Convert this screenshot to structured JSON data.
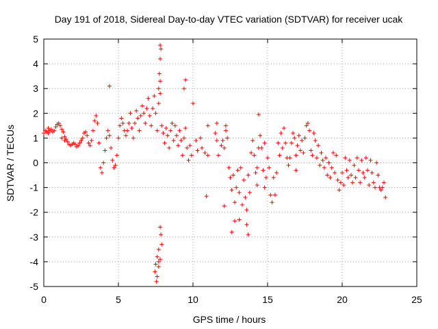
{
  "chart_data": {
    "type": "scatter",
    "title": "Day 191 of 2018, Sidereal Day-to-day VTEC variation (SDTVAR) for receiver ucak",
    "xlabel": "GPS time / hours",
    "ylabel": "SDTVAR / TECUs",
    "xlim": [
      0,
      25
    ],
    "ylim": [
      -5,
      5
    ],
    "xticks": [
      "0",
      "5",
      "10",
      "15",
      "20",
      "25"
    ],
    "yticks": [
      "-5",
      "-4",
      "-3",
      "-2",
      "-1",
      "0",
      "1",
      "2",
      "3",
      "4",
      "5"
    ],
    "grid": true,
    "marker": "+",
    "color": "#ff0000",
    "series": [
      {
        "name": "SDTVAR",
        "points": [
          [
            0.0,
            1.2
          ],
          [
            0.1,
            1.3
          ],
          [
            0.2,
            1.25
          ],
          [
            0.3,
            1.2
          ],
          [
            0.4,
            1.3
          ],
          [
            0.5,
            1.35
          ],
          [
            0.6,
            1.25
          ],
          [
            0.7,
            1.3
          ],
          [
            0.8,
            1.45
          ],
          [
            0.9,
            1.55
          ],
          [
            1.0,
            1.6
          ],
          [
            1.1,
            1.5
          ],
          [
            1.2,
            1.35
          ],
          [
            1.3,
            1.25
          ],
          [
            1.4,
            1.05
          ],
          [
            1.5,
            0.95
          ],
          [
            1.6,
            0.85
          ],
          [
            1.7,
            0.75
          ],
          [
            1.8,
            0.7
          ],
          [
            1.9,
            0.75
          ],
          [
            2.0,
            0.8
          ],
          [
            2.1,
            0.75
          ],
          [
            2.2,
            0.65
          ],
          [
            2.3,
            0.7
          ],
          [
            2.4,
            0.8
          ],
          [
            2.5,
            0.9
          ],
          [
            2.6,
            1.0
          ],
          [
            2.7,
            1.2
          ],
          [
            2.8,
            1.25
          ],
          [
            2.9,
            1.1
          ],
          [
            3.0,
            0.8
          ],
          [
            3.1,
            0.7
          ],
          [
            3.2,
            0.9
          ],
          [
            3.3,
            1.3
          ],
          [
            3.4,
            1.7
          ],
          [
            3.5,
            1.9
          ],
          [
            3.6,
            1.6
          ],
          [
            3.7,
            0.8
          ],
          [
            3.8,
            -0.2
          ],
          [
            3.9,
            -0.4
          ],
          [
            4.0,
            0.0
          ],
          [
            4.1,
            0.5
          ],
          [
            4.2,
            1.0
          ],
          [
            4.3,
            1.3
          ],
          [
            4.4,
            1.1
          ],
          [
            4.5,
            0.6
          ],
          [
            4.6,
            0.1
          ],
          [
            4.7,
            -0.2
          ],
          [
            4.8,
            -0.1
          ],
          [
            4.9,
            0.3
          ],
          [
            5.0,
            1.0
          ],
          [
            5.1,
            1.5
          ],
          [
            5.2,
            1.8
          ],
          [
            5.3,
            1.6
          ],
          [
            5.4,
            1.3
          ],
          [
            5.5,
            1.1
          ],
          [
            5.6,
            1.3
          ],
          [
            5.7,
            1.6
          ],
          [
            5.8,
            2.0
          ],
          [
            5.9,
            1.4
          ],
          [
            6.0,
            1.0
          ],
          [
            6.1,
            1.6
          ],
          [
            6.2,
            2.1
          ],
          [
            6.3,
            1.8
          ],
          [
            6.4,
            1.3
          ],
          [
            6.5,
            1.9
          ],
          [
            6.6,
            2.3
          ],
          [
            6.7,
            2.0
          ],
          [
            6.8,
            1.6
          ],
          [
            6.9,
            2.2
          ],
          [
            7.0,
            2.6
          ],
          [
            7.1,
            1.9
          ],
          [
            7.2,
            1.5
          ],
          [
            7.3,
            2.2
          ],
          [
            7.4,
            2.7
          ],
          [
            7.5,
            2.0
          ],
          [
            7.6,
            1.3
          ],
          [
            7.7,
            2.4
          ],
          [
            7.8,
            2.8
          ],
          [
            7.9,
            1.5
          ],
          [
            8.0,
            1.2
          ],
          [
            8.1,
            0.8
          ],
          [
            8.2,
            1.4
          ],
          [
            8.3,
            1.1
          ],
          [
            8.4,
            0.6
          ],
          [
            8.5,
            1.3
          ],
          [
            8.6,
            1.6
          ],
          [
            8.7,
            0.9
          ],
          [
            8.8,
            1.5
          ],
          [
            8.9,
            1.1
          ],
          [
            9.0,
            0.7
          ],
          [
            9.1,
            1.3
          ],
          [
            9.2,
            0.9
          ],
          [
            9.3,
            0.3
          ],
          [
            9.4,
            1.0
          ],
          [
            9.5,
            1.4
          ],
          [
            9.6,
            0.6
          ],
          [
            9.7,
            0.1
          ],
          [
            9.8,
            0.7
          ],
          [
            9.9,
            0.3
          ],
          [
            10.2,
            0.9
          ],
          [
            10.3,
            0.5
          ],
          [
            10.5,
            1.0
          ],
          [
            10.6,
            0.6
          ],
          [
            10.8,
            0.4
          ],
          [
            11.0,
            0.3
          ],
          [
            11.5,
            1.2
          ],
          [
            11.6,
            0.9
          ],
          [
            11.7,
            0.3
          ],
          [
            11.9,
            0.7
          ],
          [
            12.0,
            0.9
          ],
          [
            12.1,
            0.6
          ],
          [
            12.2,
            1.3
          ],
          [
            12.3,
            1.0
          ],
          [
            12.4,
            -0.2
          ],
          [
            12.5,
            -0.6
          ],
          [
            12.6,
            -1.1
          ],
          [
            12.7,
            -0.5
          ],
          [
            12.8,
            -1.6
          ],
          [
            12.9,
            -1.0
          ],
          [
            13.0,
            -0.3
          ],
          [
            13.1,
            -1.2
          ],
          [
            13.2,
            -0.2
          ],
          [
            13.3,
            -1.7
          ],
          [
            13.4,
            -0.7
          ],
          [
            13.5,
            -1.4
          ],
          [
            13.6,
            -1.9
          ],
          [
            13.7,
            -0.5
          ],
          [
            13.8,
            -1.2
          ],
          [
            13.9,
            0.4
          ],
          [
            14.0,
            0.9
          ],
          [
            14.1,
            0.3
          ],
          [
            14.2,
            -0.4
          ],
          [
            14.3,
            -0.2
          ],
          [
            14.4,
            0.6
          ],
          [
            14.5,
            1.1
          ],
          [
            14.6,
            0.6
          ],
          [
            14.7,
            -0.3
          ],
          [
            14.8,
            -1.0
          ],
          [
            14.9,
            -0.6
          ],
          [
            15.0,
            0.2
          ],
          [
            15.1,
            -0.2
          ],
          [
            15.2,
            -1.3
          ],
          [
            15.3,
            -1.6
          ],
          [
            15.4,
            -0.6
          ],
          [
            15.5,
            -1.3
          ],
          [
            15.6,
            -0.4
          ],
          [
            15.7,
            0.8
          ],
          [
            15.8,
            0.3
          ],
          [
            15.9,
            1.2
          ],
          [
            16.0,
            0.6
          ],
          [
            16.1,
            1.4
          ],
          [
            16.2,
            0.8
          ],
          [
            16.3,
            0.2
          ],
          [
            16.4,
            -0.1
          ],
          [
            16.5,
            0.2
          ],
          [
            16.6,
            0.8
          ],
          [
            16.7,
            1.2
          ],
          [
            16.8,
            1.0
          ],
          [
            16.9,
            0.3
          ],
          [
            17.0,
            0.7
          ],
          [
            17.1,
            1.1
          ],
          [
            17.2,
            0.5
          ],
          [
            17.3,
            0.9
          ],
          [
            17.4,
            0.4
          ],
          [
            17.5,
            1.0
          ],
          [
            17.6,
            1.5
          ],
          [
            17.7,
            1.6
          ],
          [
            17.8,
            1.3
          ],
          [
            17.9,
            0.5
          ],
          [
            18.0,
            0.3
          ],
          [
            18.1,
            1.2
          ],
          [
            18.2,
            0.9
          ],
          [
            18.3,
            0.2
          ],
          [
            18.4,
            0.7
          ],
          [
            18.5,
            -0.1
          ],
          [
            18.6,
            0.4
          ],
          [
            18.7,
            0.1
          ],
          [
            18.8,
            -0.2
          ],
          [
            18.9,
            0.2
          ],
          [
            19.0,
            -0.5
          ],
          [
            19.1,
            0.0
          ],
          [
            19.2,
            -0.6
          ],
          [
            19.3,
            -0.2
          ],
          [
            19.4,
            0.4
          ],
          [
            19.5,
            -0.4
          ],
          [
            19.6,
            0.3
          ],
          [
            19.7,
            -0.7
          ],
          [
            19.8,
            -1.1
          ],
          [
            19.9,
            -0.8
          ],
          [
            20.0,
            -0.4
          ],
          [
            20.1,
            -0.9
          ],
          [
            20.2,
            0.2
          ],
          [
            20.3,
            -0.3
          ],
          [
            20.4,
            -0.6
          ],
          [
            20.5,
            0.1
          ],
          [
            20.6,
            -0.5
          ],
          [
            20.7,
            -0.8
          ],
          [
            20.8,
            -0.1
          ],
          [
            20.9,
            -0.6
          ],
          [
            21.0,
            0.2
          ],
          [
            21.1,
            -0.3
          ],
          [
            21.2,
            -0.8
          ],
          [
            21.3,
            0.1
          ],
          [
            21.4,
            -0.4
          ],
          [
            21.5,
            -0.6
          ],
          [
            21.6,
            0.2
          ],
          [
            21.7,
            -0.3
          ],
          [
            21.8,
            -0.9
          ],
          [
            21.9,
            0.1
          ],
          [
            22.0,
            -0.4
          ],
          [
            22.1,
            -0.8
          ],
          [
            22.2,
            -1.0
          ],
          [
            22.3,
            0.0
          ],
          [
            22.4,
            -0.5
          ],
          [
            22.5,
            -1.0
          ],
          [
            22.6,
            -1.1
          ],
          [
            22.7,
            -1.0
          ],
          [
            22.8,
            -0.8
          ],
          [
            22.9,
            -1.4
          ],
          [
            0.3,
            1.4
          ],
          [
            1.2,
            1.0
          ],
          [
            1.4,
            0.9
          ],
          [
            4.4,
            3.1
          ],
          [
            9.5,
            3.35
          ],
          [
            9.4,
            3.0
          ],
          [
            10.0,
            2.4
          ],
          [
            10.9,
            -1.35
          ],
          [
            11.0,
            1.5
          ],
          [
            11.6,
            1.6
          ],
          [
            12.8,
            -2.35
          ],
          [
            12.6,
            -2.8
          ],
          [
            12.1,
            -1.75
          ],
          [
            12.2,
            1.5
          ],
          [
            13.1,
            -2.3
          ],
          [
            13.7,
            -2.9
          ],
          [
            13.6,
            -2.5
          ],
          [
            14.3,
            -0.9
          ],
          [
            14.4,
            1.95
          ],
          [
            14.8,
            0.8
          ],
          [
            16.9,
            -0.3
          ],
          [
            7.8,
            4.75
          ],
          [
            7.85,
            4.6
          ],
          [
            7.8,
            4.2
          ],
          [
            7.75,
            3.6
          ],
          [
            7.8,
            3.3
          ],
          [
            7.7,
            3.0
          ],
          [
            7.8,
            -2.6
          ],
          [
            7.85,
            -2.9
          ],
          [
            7.7,
            -3.5
          ],
          [
            7.9,
            -3.3
          ],
          [
            7.6,
            -3.8
          ],
          [
            7.7,
            -4.0
          ],
          [
            7.5,
            -4.1
          ],
          [
            7.45,
            -4.4
          ],
          [
            7.6,
            -4.6
          ],
          [
            7.55,
            -4.8
          ],
          [
            7.7,
            -4.2
          ],
          [
            7.8,
            -3.9
          ]
        ]
      }
    ]
  }
}
